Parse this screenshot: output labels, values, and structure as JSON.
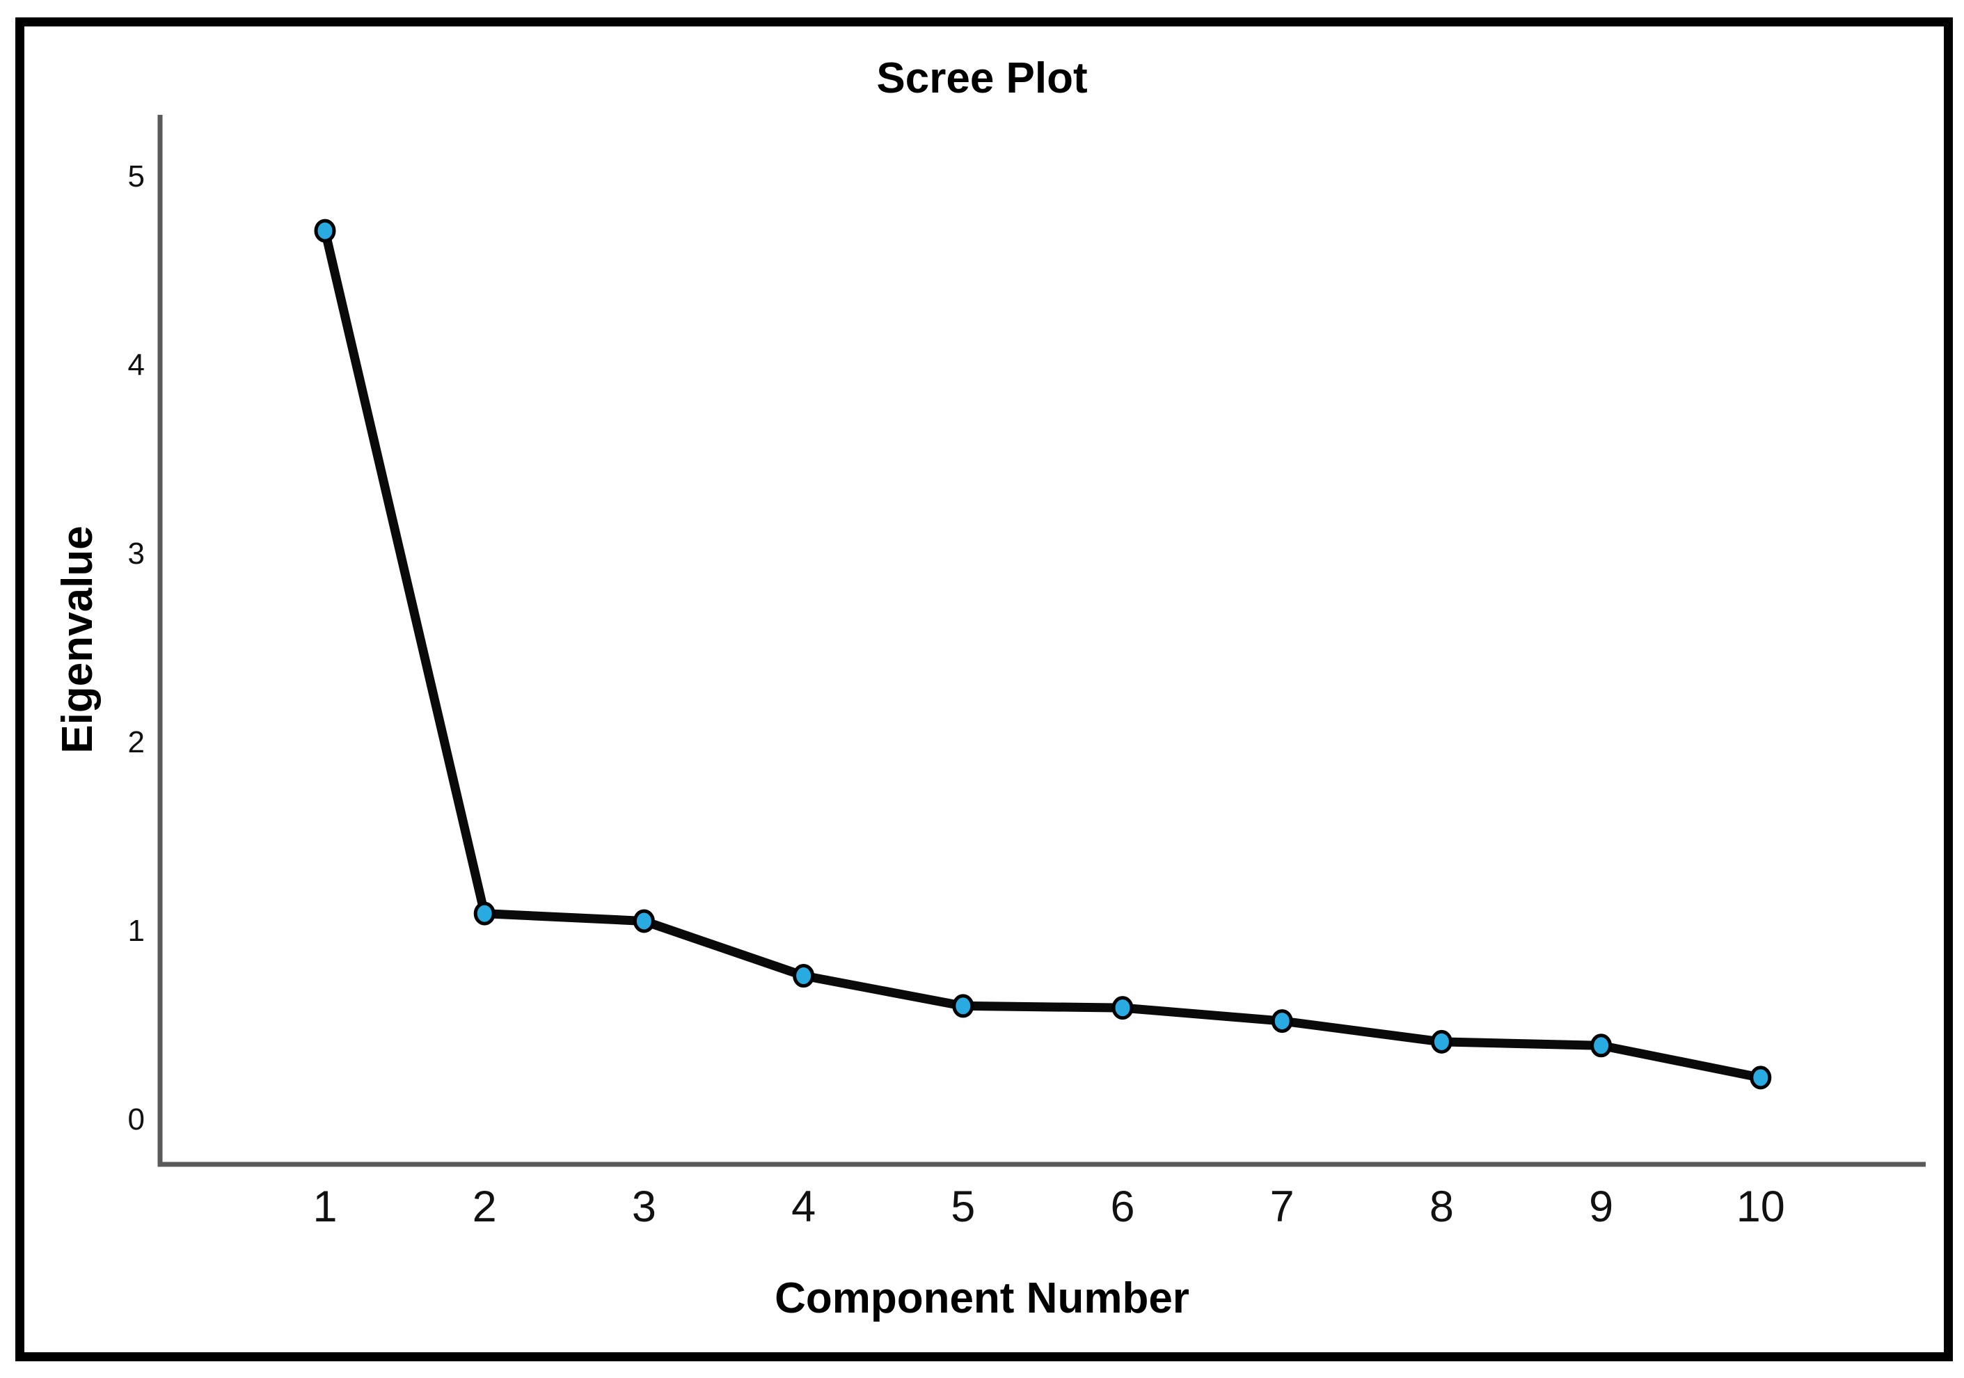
{
  "figure": {
    "title": "Scree Plot",
    "x_axis_label": "Component Number",
    "y_axis_label": "Eigenvalue"
  },
  "chart_data": {
    "type": "line",
    "title": "Scree Plot",
    "xlabel": "Component Number",
    "ylabel": "Eigenvalue",
    "categories": [
      "1",
      "2",
      "3",
      "4",
      "5",
      "6",
      "7",
      "8",
      "9",
      "10"
    ],
    "series": [
      {
        "name": "Eigenvalue",
        "values": [
          4.71,
          1.09,
          1.05,
          0.76,
          0.6,
          0.59,
          0.52,
          0.41,
          0.39,
          0.22
        ]
      }
    ],
    "y_ticks": [
      "0",
      "1",
      "2",
      "3",
      "4",
      "5"
    ],
    "y_tick_values": [
      0,
      1,
      2,
      3,
      4,
      5
    ],
    "ylim": [
      -0.24,
      5.32
    ],
    "grid": false,
    "legend": false,
    "marker_shape": "circle",
    "colors": {
      "marker_fill": "#29ABE2",
      "marker_stroke": "#000000",
      "line": "#0a0a0a",
      "axis": "#5a5a5a",
      "tick_text": "#111111",
      "frame": "#000000",
      "background": "#ffffff"
    }
  }
}
